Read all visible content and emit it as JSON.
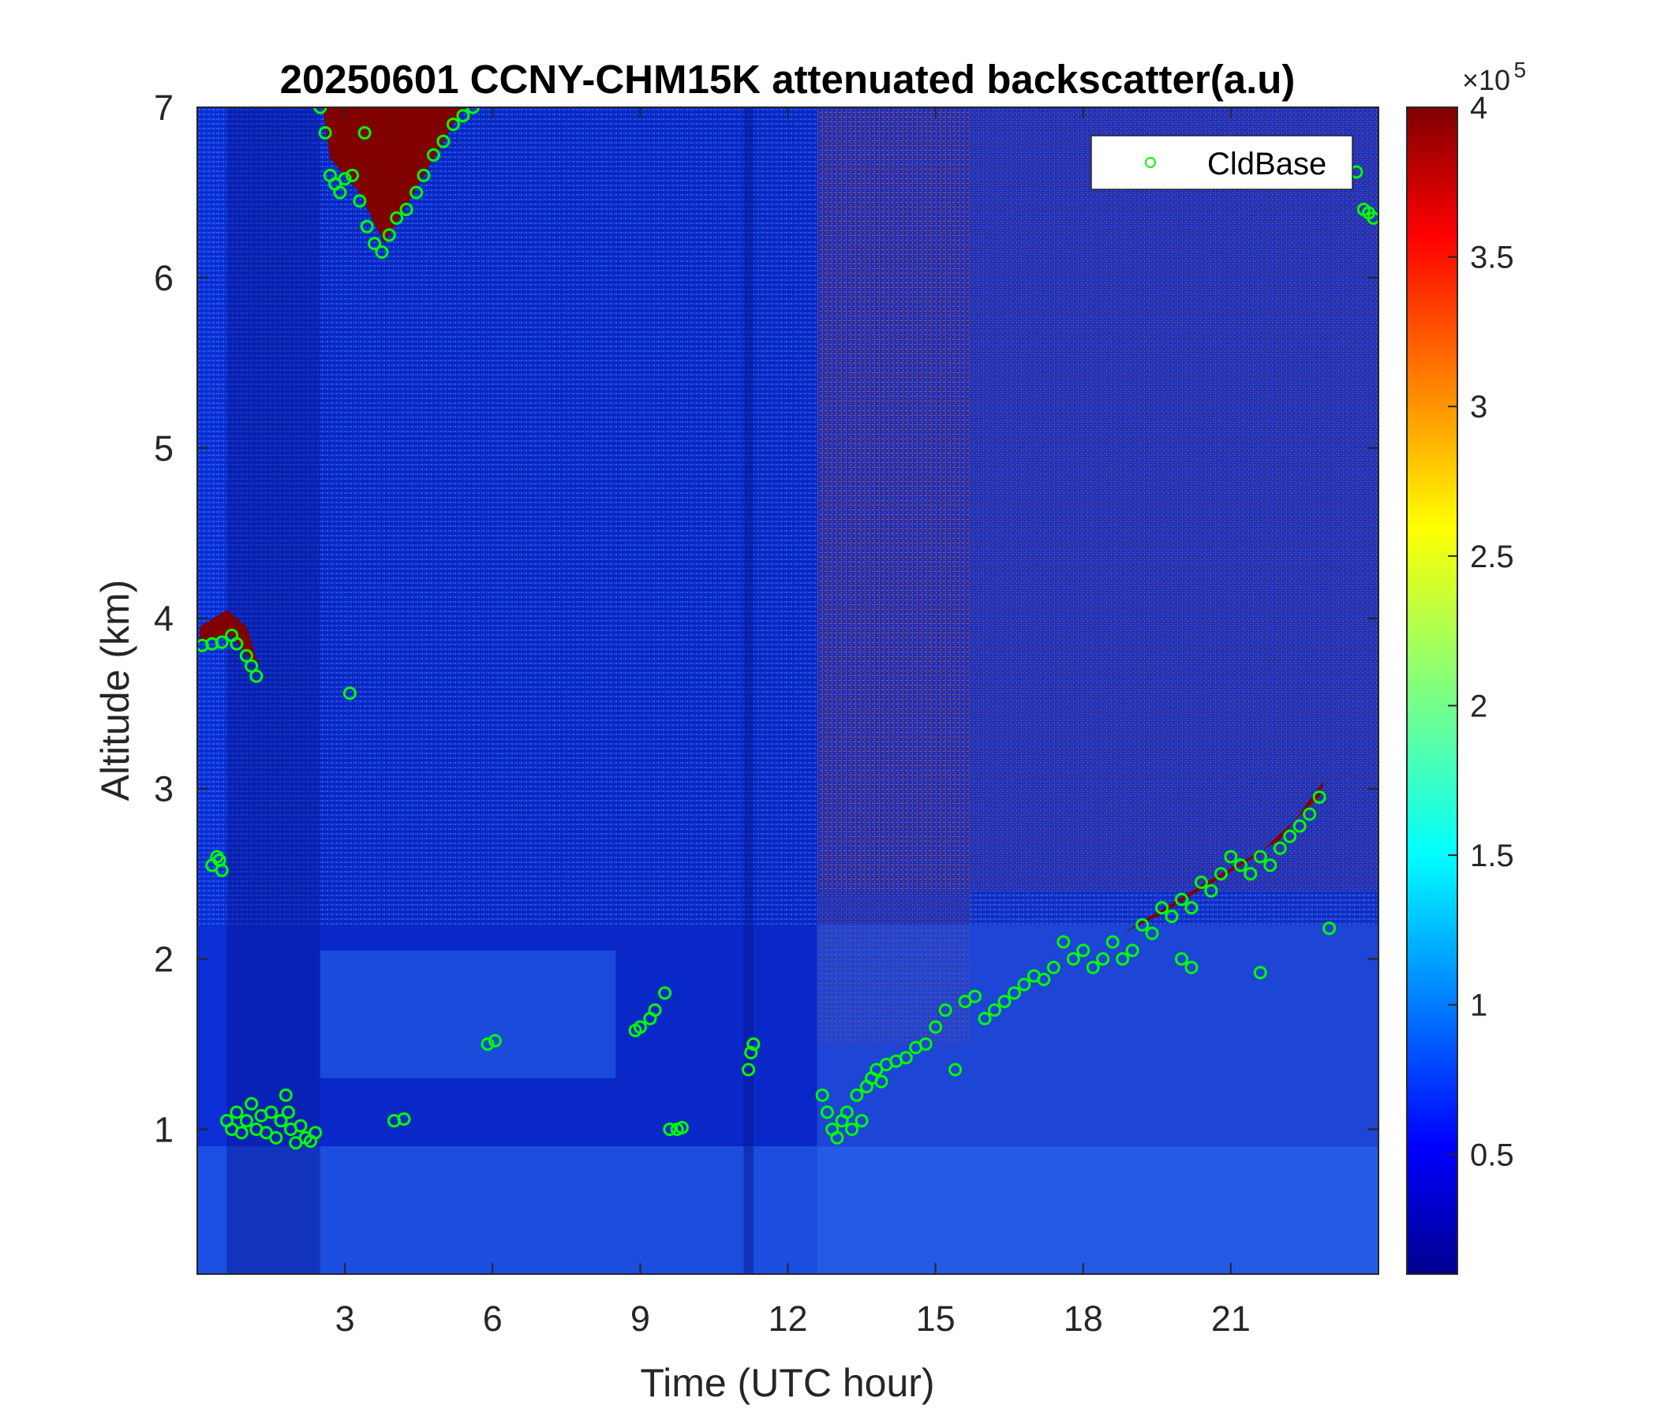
{
  "chart_data": {
    "type": "heatmap",
    "title": "20250601 CCNY-CHM15K attenuated backscatter(a.u)",
    "xlabel": "Time (UTC hour)",
    "ylabel": "Altitude (km)",
    "xlim": [
      0,
      24
    ],
    "ylim": [
      0.15,
      7
    ],
    "x_ticks": [
      3,
      6,
      9,
      12,
      15,
      18,
      21
    ],
    "x_tick_labels": [
      "3",
      "6",
      "9",
      "12",
      "15",
      "18",
      "21"
    ],
    "y_ticks": [
      1,
      2,
      3,
      4,
      5,
      6,
      7
    ],
    "y_tick_labels": [
      "1",
      "2",
      "3",
      "4",
      "5",
      "6",
      "7"
    ],
    "colorbar": {
      "colormap": "jet",
      "clim": [
        0.1,
        4
      ],
      "ticks": [
        0.5,
        1,
        1.5,
        2,
        2.5,
        3,
        3.5,
        4
      ],
      "tick_labels": [
        "0.5",
        "1",
        "1.5",
        "2",
        "2.5",
        "3",
        "3.5",
        "4"
      ],
      "multiplier_prefix": "×10",
      "multiplier_exponent": "5"
    },
    "grid": false,
    "legend": {
      "placement": "top-right",
      "entries": [
        "CldBase"
      ]
    },
    "colors": {
      "cloud_base_marker": "#00ff00",
      "cloud_saturated": "#800000",
      "background_low": "#00008f"
    },
    "series": [
      {
        "name": "CldBase",
        "marker": "circle",
        "points": [
          [
            0.1,
            3.84
          ],
          [
            0.3,
            3.85
          ],
          [
            0.5,
            3.86
          ],
          [
            0.7,
            3.9
          ],
          [
            0.8,
            3.85
          ],
          [
            1.0,
            3.78
          ],
          [
            1.1,
            3.72
          ],
          [
            1.2,
            3.66
          ],
          [
            0.3,
            2.55
          ],
          [
            0.4,
            2.6
          ],
          [
            0.5,
            2.52
          ],
          [
            0.45,
            2.58
          ],
          [
            0.6,
            1.05
          ],
          [
            0.7,
            1.0
          ],
          [
            0.8,
            1.1
          ],
          [
            0.9,
            0.98
          ],
          [
            1.0,
            1.05
          ],
          [
            1.1,
            1.15
          ],
          [
            1.2,
            1.0
          ],
          [
            1.3,
            1.08
          ],
          [
            1.4,
            0.98
          ],
          [
            1.5,
            1.1
          ],
          [
            1.6,
            0.95
          ],
          [
            1.7,
            1.05
          ],
          [
            1.8,
            1.2
          ],
          [
            1.85,
            1.1
          ],
          [
            1.9,
            1.0
          ],
          [
            2.0,
            0.92
          ],
          [
            2.1,
            1.02
          ],
          [
            2.2,
            0.95
          ],
          [
            2.3,
            0.93
          ],
          [
            2.4,
            0.98
          ],
          [
            2.5,
            7.0
          ],
          [
            2.6,
            6.85
          ],
          [
            2.7,
            6.6
          ],
          [
            2.8,
            6.55
          ],
          [
            2.9,
            6.5
          ],
          [
            3.0,
            6.58
          ],
          [
            3.15,
            6.6
          ],
          [
            3.3,
            6.45
          ],
          [
            3.45,
            6.3
          ],
          [
            3.6,
            6.2
          ],
          [
            3.75,
            6.15
          ],
          [
            3.9,
            6.25
          ],
          [
            4.05,
            6.35
          ],
          [
            4.25,
            6.4
          ],
          [
            4.45,
            6.5
          ],
          [
            4.6,
            6.6
          ],
          [
            4.8,
            6.72
          ],
          [
            5.0,
            6.8
          ],
          [
            5.2,
            6.9
          ],
          [
            5.4,
            6.95
          ],
          [
            5.6,
            7.0
          ],
          [
            3.4,
            6.85
          ],
          [
            3.1,
            3.56
          ],
          [
            4.0,
            1.05
          ],
          [
            4.2,
            1.06
          ],
          [
            5.9,
            1.5
          ],
          [
            6.05,
            1.52
          ],
          [
            8.9,
            1.58
          ],
          [
            9.0,
            1.6
          ],
          [
            9.2,
            1.65
          ],
          [
            9.3,
            1.7
          ],
          [
            9.5,
            1.8
          ],
          [
            9.6,
            1.0
          ],
          [
            9.75,
            1.0
          ],
          [
            9.85,
            1.01
          ],
          [
            11.2,
            1.35
          ],
          [
            11.25,
            1.45
          ],
          [
            11.3,
            1.5
          ],
          [
            12.7,
            1.2
          ],
          [
            12.8,
            1.1
          ],
          [
            12.9,
            1.0
          ],
          [
            13.0,
            0.95
          ],
          [
            13.1,
            1.05
          ],
          [
            13.2,
            1.1
          ],
          [
            13.3,
            1.0
          ],
          [
            13.4,
            1.2
          ],
          [
            13.5,
            1.05
          ],
          [
            13.6,
            1.25
          ],
          [
            13.7,
            1.3
          ],
          [
            13.8,
            1.35
          ],
          [
            13.9,
            1.28
          ],
          [
            14.0,
            1.38
          ],
          [
            14.2,
            1.4
          ],
          [
            14.4,
            1.42
          ],
          [
            14.6,
            1.48
          ],
          [
            14.8,
            1.5
          ],
          [
            15.0,
            1.6
          ],
          [
            15.2,
            1.7
          ],
          [
            15.4,
            1.35
          ],
          [
            15.6,
            1.75
          ],
          [
            15.8,
            1.78
          ],
          [
            16.0,
            1.65
          ],
          [
            16.2,
            1.7
          ],
          [
            16.4,
            1.75
          ],
          [
            16.6,
            1.8
          ],
          [
            16.8,
            1.85
          ],
          [
            17.0,
            1.9
          ],
          [
            17.2,
            1.88
          ],
          [
            17.4,
            1.95
          ],
          [
            17.6,
            2.1
          ],
          [
            17.8,
            2.0
          ],
          [
            18.0,
            2.05
          ],
          [
            18.2,
            1.95
          ],
          [
            18.4,
            2.0
          ],
          [
            18.6,
            2.1
          ],
          [
            18.8,
            2.0
          ],
          [
            19.0,
            2.05
          ],
          [
            19.2,
            2.2
          ],
          [
            19.4,
            2.15
          ],
          [
            19.6,
            2.3
          ],
          [
            19.8,
            2.25
          ],
          [
            20.0,
            2.35
          ],
          [
            20.2,
            2.3
          ],
          [
            20.4,
            2.45
          ],
          [
            20.6,
            2.4
          ],
          [
            20.8,
            2.5
          ],
          [
            21.0,
            2.6
          ],
          [
            21.2,
            2.55
          ],
          [
            21.4,
            2.5
          ],
          [
            21.6,
            2.6
          ],
          [
            21.8,
            2.55
          ],
          [
            22.0,
            2.65
          ],
          [
            22.2,
            2.72
          ],
          [
            22.4,
            2.78
          ],
          [
            22.6,
            2.85
          ],
          [
            22.8,
            2.95
          ],
          [
            20.0,
            2.0
          ],
          [
            20.2,
            1.95
          ],
          [
            21.6,
            1.92
          ],
          [
            23.0,
            2.18
          ],
          [
            23.55,
            6.62
          ],
          [
            23.7,
            6.4
          ],
          [
            23.8,
            6.38
          ],
          [
            23.9,
            6.35
          ]
        ]
      }
    ]
  }
}
